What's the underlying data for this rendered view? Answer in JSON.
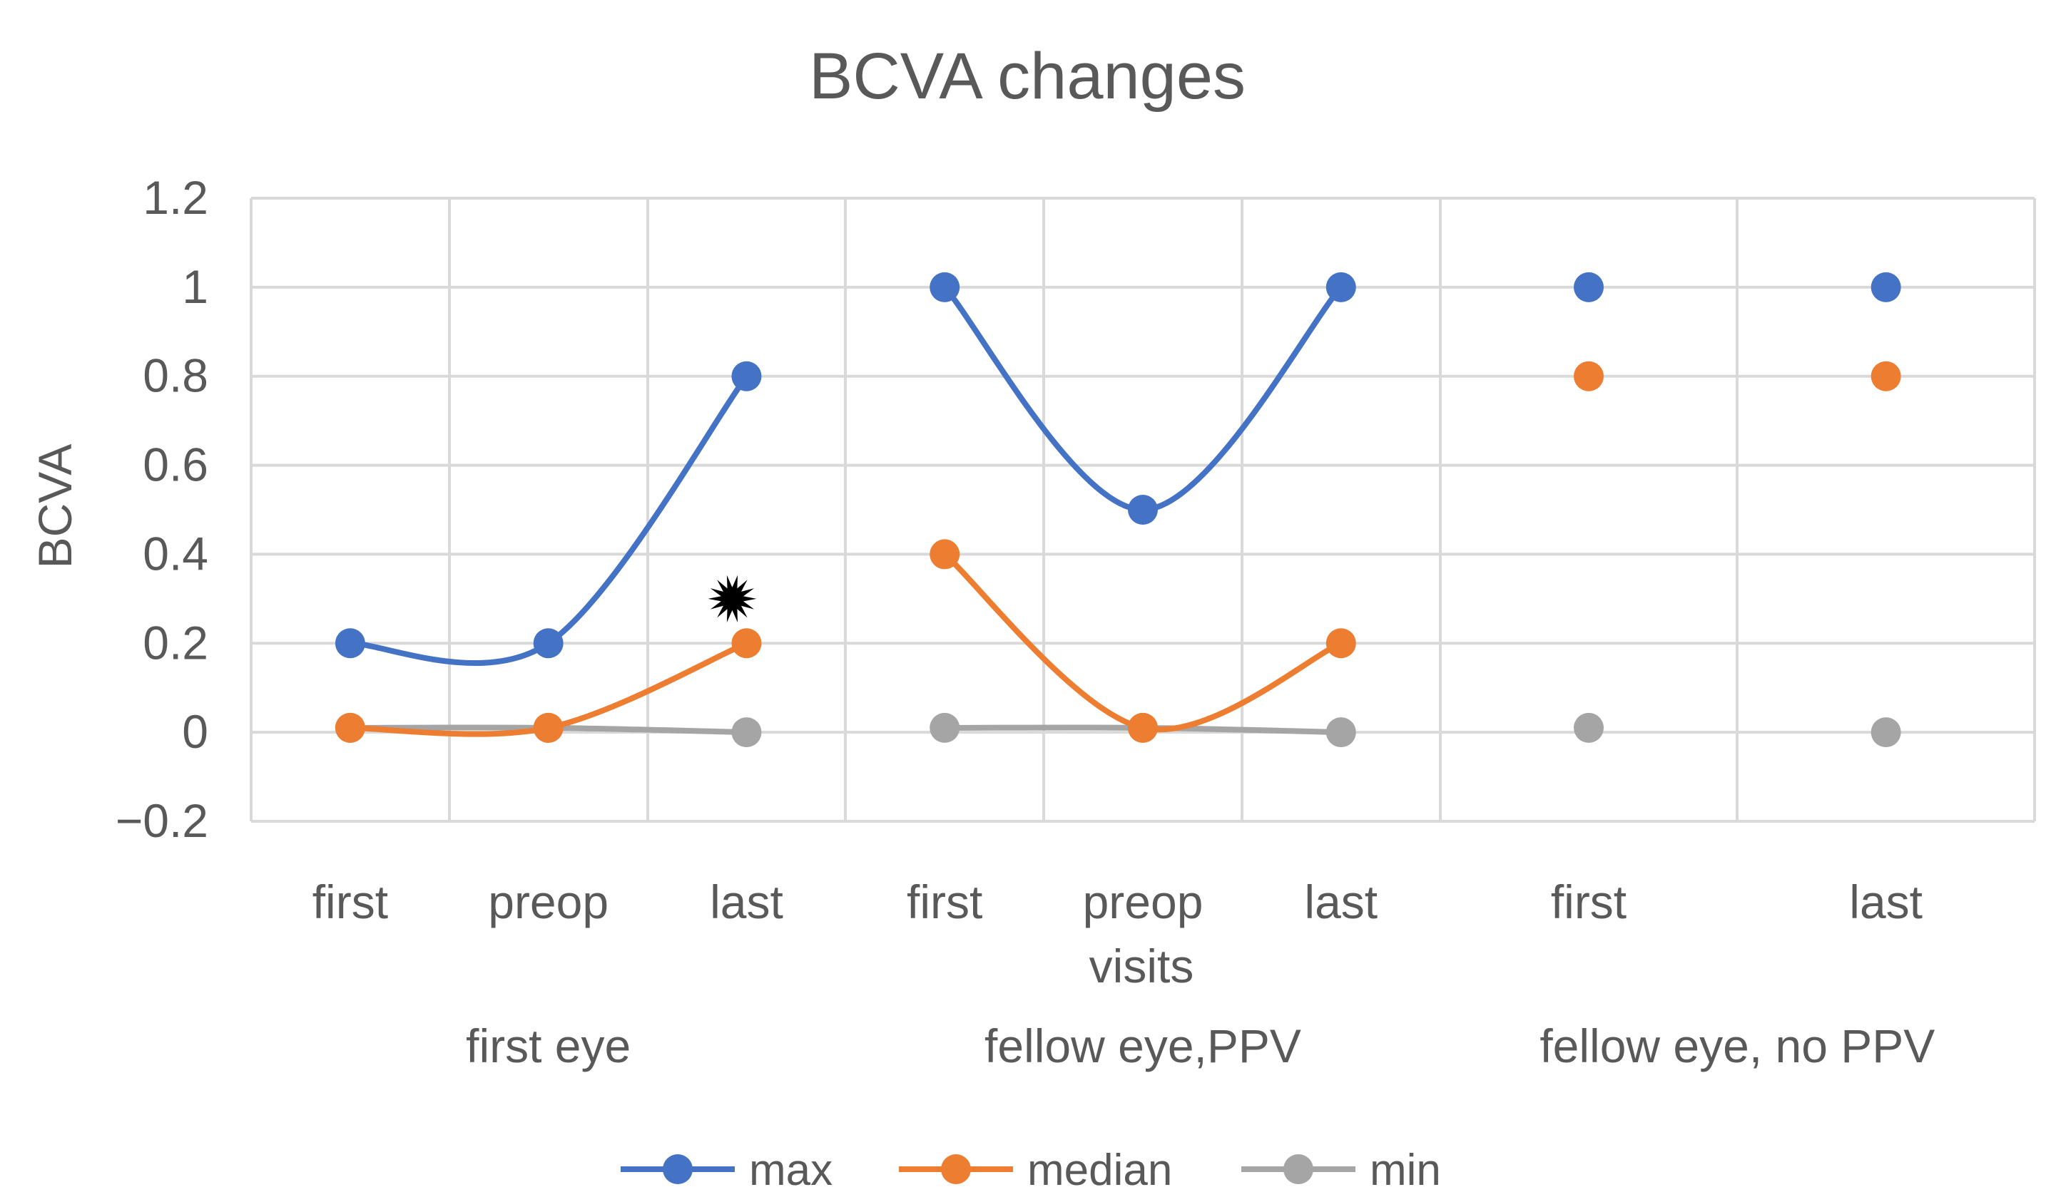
{
  "chart_data": {
    "type": "line",
    "title": "BCVA changes",
    "ylabel": "BCVA",
    "xlabel": "visits",
    "ylim": [
      -0.2,
      1.2
    ],
    "yticks": [
      -0.2,
      0,
      0.2,
      0.4,
      0.6,
      0.8,
      1,
      1.2
    ],
    "ytick_labels": [
      "−0.2",
      "0",
      "0.2",
      "0.4",
      "0.6",
      "0.8",
      "1",
      "1.2"
    ],
    "groups": [
      {
        "name": "first eye",
        "categories": [
          "first",
          "preop",
          "last"
        ]
      },
      {
        "name": "fellow eye,PPV",
        "categories": [
          "first",
          "preop",
          "last"
        ]
      },
      {
        "name": "fellow eye, no PPV",
        "categories": [
          "first",
          "last"
        ]
      }
    ],
    "series": [
      {
        "name": "max",
        "color": "#4472c4",
        "segments": [
          [
            0.2,
            0.2,
            0.8
          ],
          [
            1.0,
            0.5,
            1.0
          ],
          [
            1.0,
            1.0
          ]
        ],
        "connect": [
          true,
          true,
          false
        ]
      },
      {
        "name": "median",
        "color": "#ed7d31",
        "segments": [
          [
            0.01,
            0.01,
            0.2
          ],
          [
            0.4,
            0.01,
            0.2
          ],
          [
            0.8,
            0.8
          ]
        ],
        "connect": [
          true,
          true,
          false
        ]
      },
      {
        "name": "min",
        "color": "#a5a5a5",
        "segments": [
          [
            0.01,
            0.01,
            0.0
          ],
          [
            0.01,
            0.01,
            0.0
          ],
          [
            0.01,
            0.0
          ]
        ],
        "connect": [
          true,
          true,
          false
        ]
      }
    ],
    "annotation": {
      "type": "star-marker",
      "group": 0,
      "category": 2,
      "value": 0.3,
      "color": "#000000"
    },
    "legend_position": "bottom",
    "grid": true
  }
}
